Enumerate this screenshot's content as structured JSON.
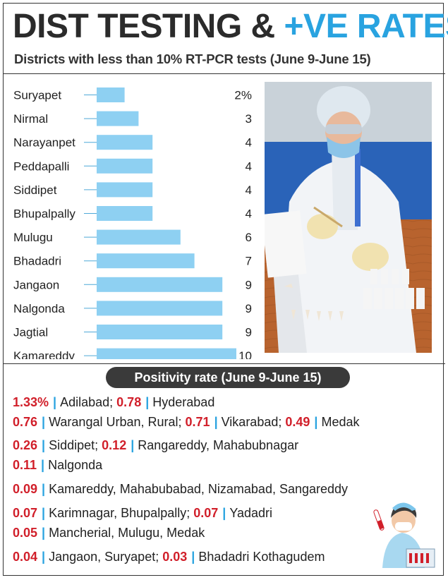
{
  "headline": {
    "part1": "DIST TESTING & ",
    "part2": "+VE RATES"
  },
  "subtitle": "Districts with less than 10% RT-PCR tests (June 9-June 15)",
  "chart_data": {
    "type": "bar",
    "orientation": "horizontal",
    "categories": [
      "Suryapet",
      "Nirmal",
      "Narayanpet",
      "Peddapalli",
      "Siddipet",
      "Bhupalpally",
      "Mulugu",
      "Bhadadri",
      "Jangaon",
      "Nalgonda",
      "Jagtial",
      "Kamareddy"
    ],
    "values": [
      2,
      3,
      4,
      4,
      4,
      4,
      6,
      7,
      9,
      9,
      9,
      10
    ],
    "value_labels": [
      "2%",
      "3",
      "4",
      "4",
      "4",
      "4",
      "6",
      "7",
      "9",
      "9",
      "9",
      "10"
    ],
    "title": "Districts with less than 10% RT-PCR tests (June 9-June 15)",
    "xlim": [
      0,
      10
    ],
    "unit": "%",
    "bar_color": "#8ed0f2",
    "grid": false
  },
  "positivity": {
    "title": "Positivity rate (June 9-June 15)",
    "value_color": "#d11f2a",
    "separator_color": "#29a3e0",
    "lines": [
      [
        {
          "v": "1.33%",
          "d": "Adilabad;"
        },
        {
          "v": "0.78",
          "d": "Hyderabad"
        }
      ],
      [
        {
          "v": "0.76",
          "d": "Warangal Urban, Rural;"
        },
        {
          "v": "0.71",
          "d": "Vikarabad;"
        },
        {
          "v": "0.49",
          "d": "Medak"
        }
      ],
      [
        {
          "v": "0.26",
          "d": "Siddipet;"
        },
        {
          "v": "0.12",
          "d": "Rangareddy, Mahabubnagar"
        }
      ],
      [
        {
          "v": "0.11",
          "d": "Nalgonda"
        }
      ],
      [
        {
          "v": "0.09",
          "d": "Kamareddy, Mahabubabad, Nizamabad, Sangareddy"
        }
      ],
      [
        {
          "v": "0.07",
          "d": "Karimnagar, Bhupalpally;"
        },
        {
          "v": "0.07",
          "d": "Yadadri"
        }
      ],
      [
        {
          "v": "0.05",
          "d": "Mancherial, Mulugu, Medak"
        }
      ],
      [
        {
          "v": "0.04",
          "d": "Jangaon, Suryapet;"
        },
        {
          "v": "0.03",
          "d": "Bhadadri Kothagudem"
        }
      ]
    ]
  },
  "separator": "|"
}
